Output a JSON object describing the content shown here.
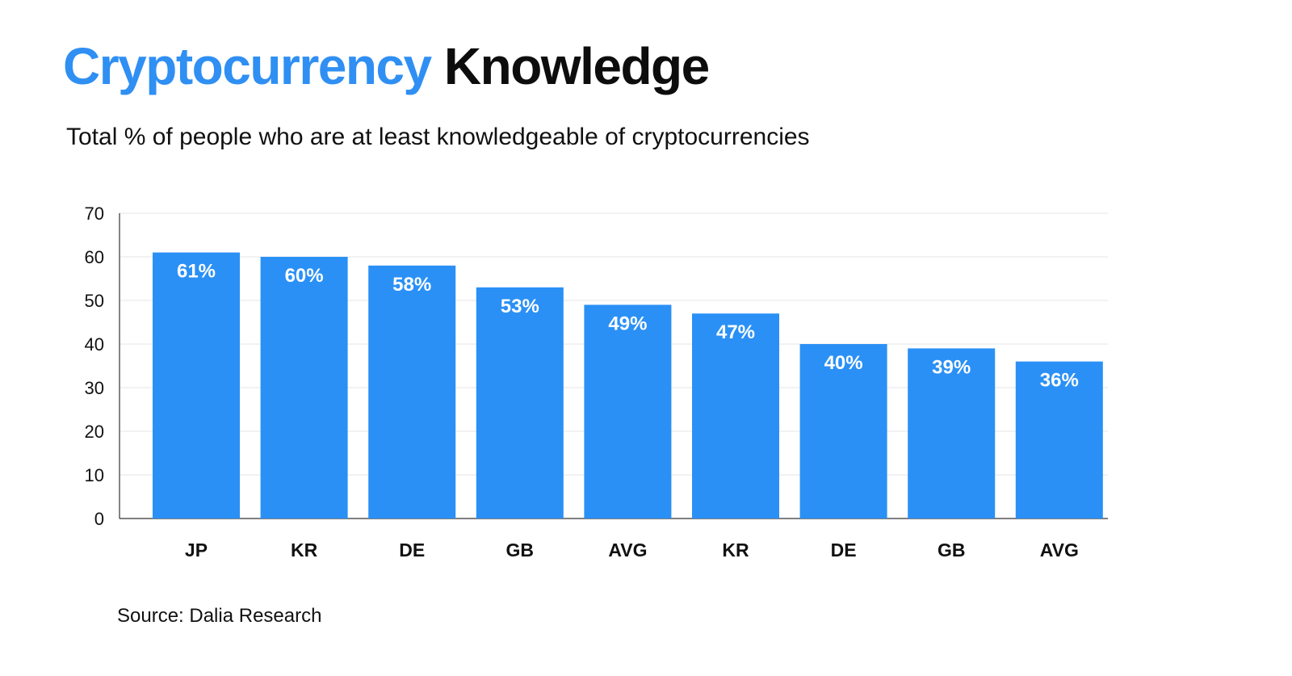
{
  "header": {
    "title_accent": "Cryptocurrency",
    "title_rest": "Knowledge",
    "subtitle": "Total % of people who are at least knowledgeable of cryptocurrencies"
  },
  "footer": {
    "source": "Source: Dalia Research"
  },
  "colors": {
    "accent": "#2f8ff3",
    "bar": "#2a90f6",
    "grid": "#e6e6e6",
    "axis": "#333333"
  },
  "chart_data": {
    "type": "bar",
    "title": "Cryptocurrency Knowledge",
    "subtitle": "Total % of people who are at least knowledgeable of cryptocurrencies",
    "categories": [
      "JP",
      "KR",
      "DE",
      "GB",
      "AVG",
      "KR",
      "DE",
      "GB",
      "AVG"
    ],
    "values": [
      61,
      60,
      58,
      53,
      49,
      47,
      40,
      39,
      36
    ],
    "data_labels": [
      "61%",
      "60%",
      "58%",
      "53%",
      "49%",
      "47%",
      "40%",
      "39%",
      "36%"
    ],
    "xlabel": "",
    "ylabel": "",
    "ylim": [
      0,
      70
    ],
    "yticks": [
      0,
      10,
      20,
      30,
      40,
      50,
      60,
      70
    ],
    "grid": true,
    "legend": "none"
  }
}
